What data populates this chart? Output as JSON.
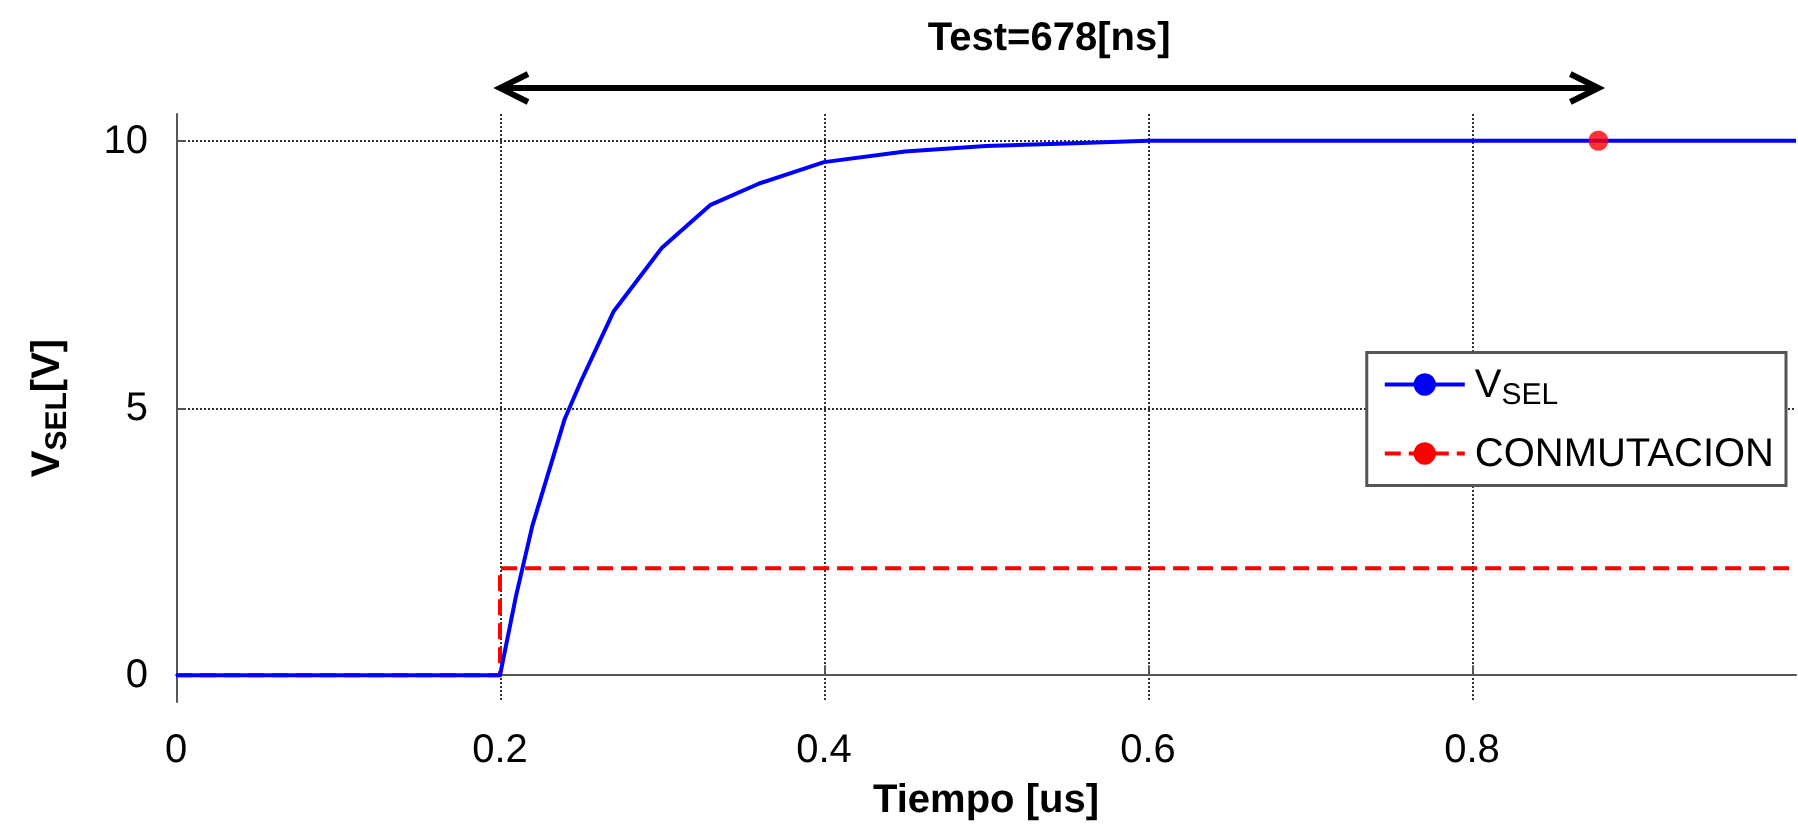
{
  "chart_data": {
    "type": "line",
    "xlabel": "Tiempo [us]",
    "ylabel": "V$_{SEL}$[V]",
    "xlim": [
      0,
      1
    ],
    "xticks": [
      0,
      0.2,
      0.4,
      0.6,
      0.8
    ],
    "ylim": [
      -0.5,
      10.5
    ],
    "yticks": [
      0,
      5,
      10
    ],
    "grid": true,
    "legend": "right",
    "annotations": [
      "Test=678[ns]"
    ],
    "series": [
      {
        "name": "V$_{SEL}$",
        "color": "#0000ff",
        "line_style": "solid",
        "x": [
          0,
          0.2,
          0.21,
          0.22,
          0.23,
          0.24,
          0.25,
          0.27,
          0.3,
          0.33,
          0.36,
          0.4,
          0.45,
          0.5,
          0.55,
          0.6,
          0.7,
          0.8,
          1
        ],
        "values": [
          0,
          0,
          1.5,
          2.8,
          3.8,
          4.8,
          5.5,
          6.8,
          8.0,
          8.8,
          9.2,
          9.6,
          9.8,
          9.9,
          9.95,
          10,
          10,
          10,
          10
        ]
      },
      {
        "name": "CONMUTACION",
        "type": "step",
        "color": "#ff0000",
        "line_style": "dashed",
        "x": [
          0,
          0.2,
          1
        ],
        "values": [
          0,
          2,
          2
        ]
      },
      {
        "type": "scatter",
        "color": "#ff0000",
        "marker": "circle",
        "x": [
          0.878
        ],
        "values": [
          10
        ]
      }
    ]
  }
}
